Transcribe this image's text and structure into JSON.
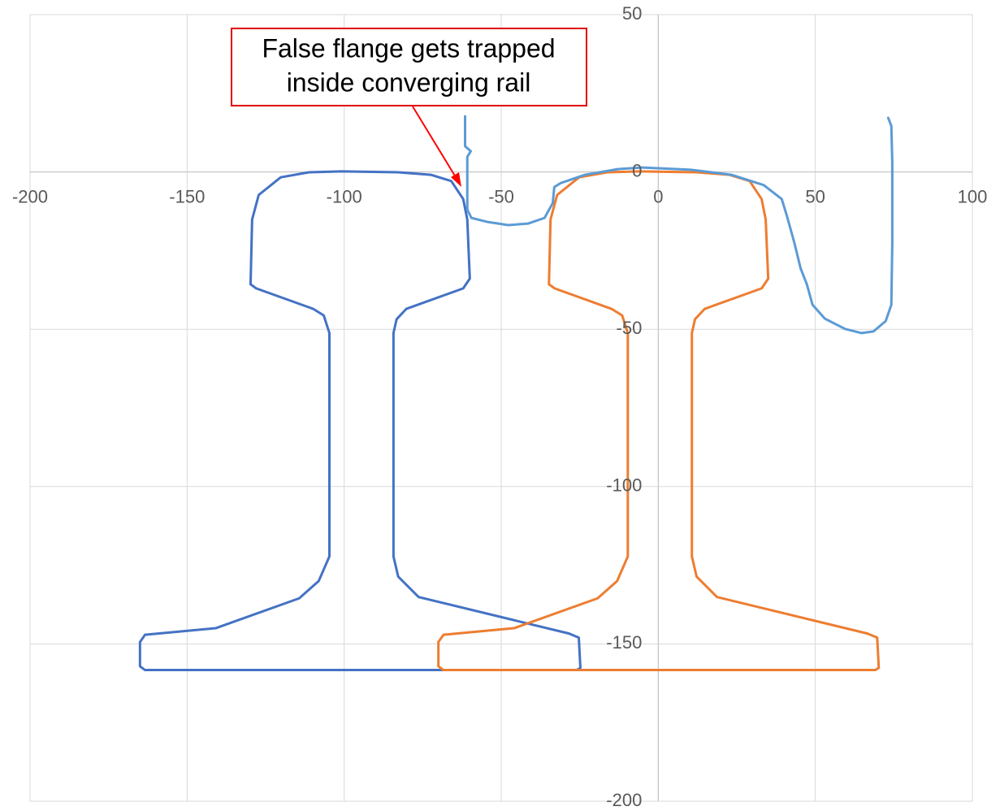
{
  "chart_data": {
    "type": "scatter",
    "annotation": [
      "False flange gets trapped",
      "inside converging rail"
    ],
    "xlim": [
      -200,
      100
    ],
    "xticks": [
      -200,
      -150,
      -100,
      -50,
      0,
      50,
      100
    ],
    "ylim": [
      -200,
      50
    ],
    "yticks": [
      -200,
      -150,
      -100,
      -50,
      0,
      50
    ],
    "grid": true,
    "series": [
      {
        "color": "#4472c4",
        "x": [
          -129.8,
          -129.3,
          -127.2,
          -120.2,
          -111.2,
          -100.9,
          -82.8,
          -72.4,
          -65.9,
          -62.1,
          -60.8,
          -60.0,
          -62.1,
          -80.2,
          -83.3,
          -84.3,
          -84.3,
          -82.8,
          -76.3,
          -28.4,
          -25.3,
          -24.8,
          -25.9,
          -163.4,
          -165.0,
          -165.0,
          -163.4,
          -140.9,
          -114.3,
          -108.1,
          -104.7,
          -104.7,
          -106.5,
          -109.9,
          -128.0,
          -129.8
        ],
        "values": [
          -35.7,
          -15.1,
          -7.3,
          -1.7,
          -0.1,
          0.2,
          -0.1,
          -0.9,
          -2.9,
          -8.6,
          -15.1,
          -33.9,
          -37.0,
          -43.5,
          -46.8,
          -51.2,
          -122.2,
          -128.6,
          -135.1,
          -146.7,
          -148.0,
          -157.6,
          -158.3,
          -158.3,
          -157.1,
          -149.4,
          -147.1,
          -145.0,
          -135.5,
          -130.0,
          -122.2,
          -51.2,
          -45.6,
          -43.5,
          -37.0,
          -35.7
        ]
      },
      {
        "color": "#ed7d31",
        "x": [
          -34.8,
          -34.3,
          -32.2,
          -25.2,
          -16.2,
          -5.9,
          12.2,
          22.6,
          29.1,
          32.9,
          34.2,
          35.0,
          32.9,
          14.8,
          11.7,
          10.7,
          10.7,
          12.2,
          18.7,
          66.6,
          69.7,
          70.2,
          69.1,
          -68.4,
          -70.0,
          -70.0,
          -68.4,
          -45.9,
          -19.3,
          -13.1,
          -9.7,
          -9.7,
          -11.5,
          -14.9,
          -33.0,
          -34.8
        ],
        "values": [
          -35.7,
          -15.1,
          -7.3,
          -1.7,
          -0.1,
          0.2,
          -0.1,
          -0.9,
          -2.9,
          -8.6,
          -15.1,
          -33.9,
          -37.0,
          -43.5,
          -46.8,
          -51.2,
          -122.2,
          -128.6,
          -135.1,
          -146.7,
          -148.0,
          -157.6,
          -158.3,
          -158.3,
          -157.1,
          -149.4,
          -147.1,
          -145.0,
          -135.5,
          -130.0,
          -122.2,
          -51.2,
          -45.6,
          -43.5,
          -37.0,
          -35.7
        ]
      },
      {
        "color": "#5b9bd5",
        "x": [
          -61.5,
          -61.5,
          -59.7,
          -60.8,
          -60.8,
          -59.5,
          -54.3,
          -47.8,
          -41.4,
          -36.2,
          -33.6,
          -33.1,
          -31.0,
          -23.3,
          -12.9,
          -5.2,
          10.3,
          23.3,
          33.6,
          39.3,
          40.9,
          43.4,
          45.3,
          47.3,
          49.1,
          53.0,
          59.5,
          64.6,
          68.5,
          72.4,
          74.2,
          74.5,
          74.5,
          74.2,
          73.2
        ],
        "values": [
          17.7,
          8.2,
          6.6,
          4.8,
          -12.0,
          -14.6,
          -15.9,
          -16.9,
          -16.4,
          -14.6,
          -9.9,
          -4.8,
          -3.5,
          -0.9,
          0.9,
          1.4,
          0.7,
          -0.9,
          -4.2,
          -8.6,
          -13.8,
          -22.8,
          -30.6,
          -35.7,
          -42.2,
          -46.6,
          -49.9,
          -51.2,
          -50.7,
          -47.4,
          -42.2,
          -22.8,
          3.0,
          14.6,
          17.2
        ]
      }
    ]
  }
}
